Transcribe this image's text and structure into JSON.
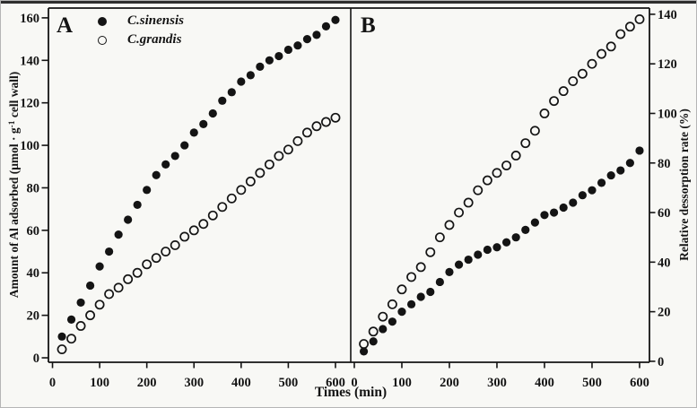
{
  "figure": {
    "panel_a_label": "A",
    "panel_b_label": "B",
    "x_axis_label": "Times (min)",
    "left_axis_label_pre": "Amount of Al adsorbed (μmol · g",
    "left_axis_label_sup": "-1",
    "left_axis_label_post": " cell wall)",
    "right_axis_label": "Relative dessorption rate (%)",
    "colors": {
      "ink": "#141414",
      "background": "#f8f8f5"
    }
  },
  "legend": {
    "position": "top-left-panel-A",
    "items": [
      {
        "label": "C.sinensis",
        "marker": "filled-circle"
      },
      {
        "label": "C.grandis",
        "marker": "open-circle"
      }
    ]
  },
  "chart_data": {
    "type": "scatter",
    "grid": false,
    "x_label": "Times (min)",
    "x_ticks": [
      0,
      100,
      200,
      300,
      400,
      500,
      600
    ],
    "xlim": [
      0,
      620
    ],
    "x": [
      20,
      40,
      60,
      80,
      100,
      120,
      140,
      160,
      180,
      200,
      220,
      240,
      260,
      280,
      300,
      320,
      340,
      360,
      380,
      400,
      420,
      440,
      460,
      480,
      500,
      520,
      540,
      560,
      580,
      600
    ],
    "panels": [
      {
        "id": "A",
        "label": "A",
        "ylabel": "Amount of Al adsorbed (μmol · g-1 cell wall)",
        "y_axis_side": "left",
        "ylim": [
          0,
          160
        ],
        "y_ticks": [
          0,
          20,
          40,
          60,
          80,
          100,
          120,
          140,
          160
        ],
        "series": [
          {
            "name": "C.sinensis",
            "marker": "filled",
            "values": [
              10,
              18,
              26,
              34,
              43,
              50,
              58,
              65,
              72,
              79,
              86,
              91,
              95,
              100,
              106,
              110,
              115,
              121,
              125,
              130,
              133,
              137,
              140,
              142,
              145,
              147,
              150,
              152,
              156,
              159
            ]
          },
          {
            "name": "C.grandis",
            "marker": "open",
            "values": [
              4,
              9,
              15,
              20,
              25,
              30,
              33,
              37,
              40,
              44,
              47,
              50,
              53,
              57,
              60,
              63,
              67,
              71,
              75,
              79,
              83,
              87,
              91,
              95,
              98,
              102,
              106,
              109,
              111,
              113
            ]
          }
        ]
      },
      {
        "id": "B",
        "label": "B",
        "ylabel": "Relative dessorption rate (%)",
        "y_axis_side": "right",
        "ylim": [
          0,
          140
        ],
        "y_ticks": [
          0,
          20,
          40,
          60,
          80,
          100,
          120,
          140
        ],
        "series": [
          {
            "name": "C.sinensis",
            "marker": "filled",
            "values": [
              4,
              8,
              13,
              16,
              20,
              23,
              26,
              28,
              32,
              36,
              39,
              41,
              43,
              45,
              46,
              48,
              50,
              53,
              56,
              59,
              60,
              62,
              64,
              67,
              69,
              72,
              75,
              77,
              80,
              85
            ]
          },
          {
            "name": "C.grandis",
            "marker": "open",
            "values": [
              7,
              12,
              18,
              23,
              29,
              34,
              38,
              44,
              50,
              55,
              60,
              64,
              69,
              73,
              76,
              79,
              83,
              88,
              93,
              100,
              105,
              109,
              113,
              116,
              120,
              124,
              127,
              132,
              135,
              138
            ]
          }
        ]
      }
    ]
  }
}
